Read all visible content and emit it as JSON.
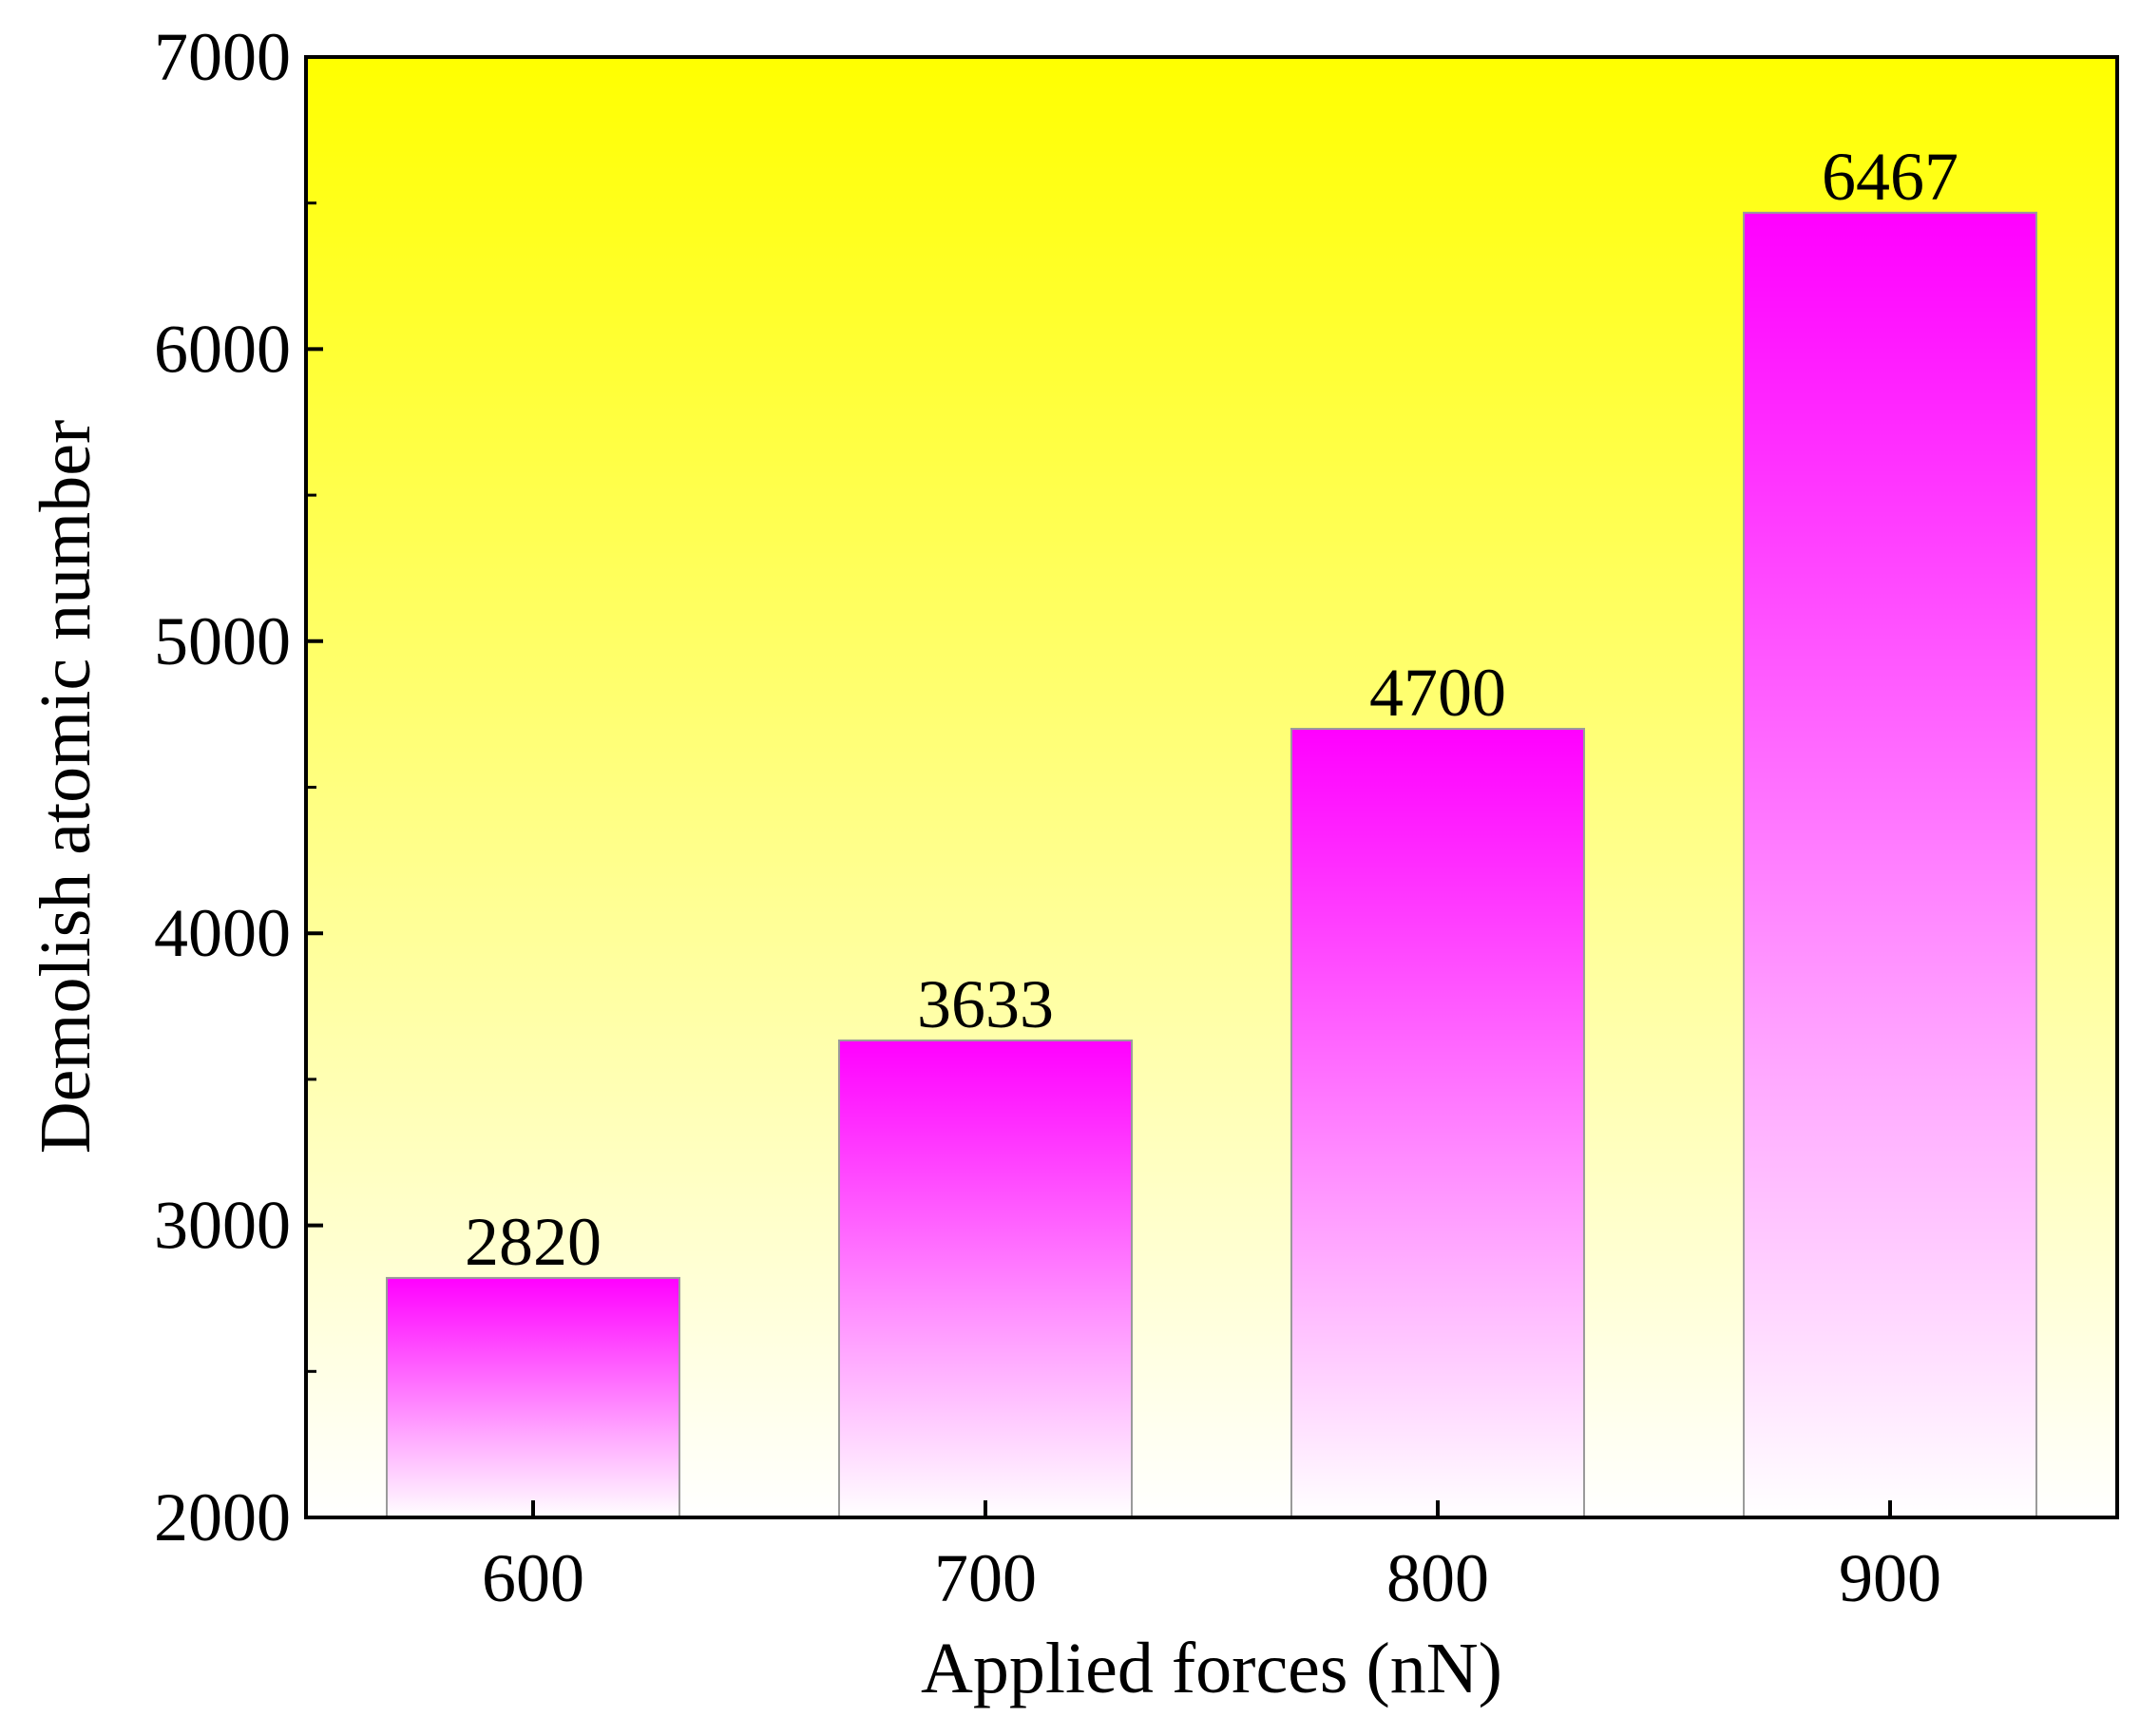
{
  "chart_data": {
    "type": "bar",
    "categories": [
      "600",
      "700",
      "800",
      "900"
    ],
    "values": [
      2820,
      3633,
      4700,
      6467
    ],
    "data_labels": [
      "2820",
      "3633",
      "4700",
      "6467"
    ],
    "xlabel": "Applied forces (nN)",
    "ylabel": "Demolish atomic number",
    "ylim": [
      2000,
      7000
    ],
    "yticks": [
      2000,
      3000,
      4000,
      5000,
      6000,
      7000
    ],
    "ytick_labels": [
      "2000",
      "3000",
      "4000",
      "5000",
      "6000",
      "7000"
    ],
    "grid": false,
    "legend": "none"
  },
  "colors": {
    "background_top": "#ffff00",
    "background_bottom": "#ffffff",
    "bar_top": "#ff00ff",
    "bar_bottom": "#ffffff",
    "bar_edge": "#9a9a9a",
    "axis": "#000000"
  }
}
